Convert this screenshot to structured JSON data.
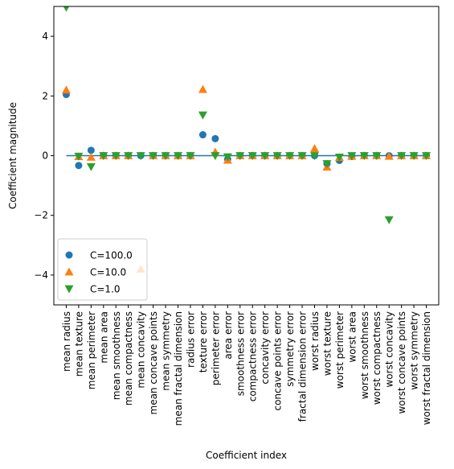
{
  "chart_data": {
    "type": "scatter",
    "xlabel": "Coefficient index",
    "ylabel": "Coefficient magnitude",
    "ylim": [
      -5,
      5
    ],
    "xlim": [
      -1,
      30
    ],
    "yticks": [
      -4,
      -2,
      0,
      2,
      4
    ],
    "grid": false,
    "legend_position": "lower-left",
    "categories": [
      "mean radius",
      "mean texture",
      "mean perimeter",
      "mean area",
      "mean smoothness",
      "mean compactness",
      "mean concavity",
      "mean concave points",
      "mean symmetry",
      "mean fractal dimension",
      "radius error",
      "texture error",
      "perimeter error",
      "area error",
      "smoothness error",
      "compactness error",
      "concavity error",
      "concave points error",
      "symmetry error",
      "fractal dimension error",
      "worst radius",
      "worst texture",
      "worst perimeter",
      "worst area",
      "worst smoothness",
      "worst compactness",
      "worst concavity",
      "worst concave points",
      "worst symmetry",
      "worst fractal dimension"
    ],
    "series": [
      {
        "name": "C=100.0",
        "marker": "circle",
        "color": "#1f77b4",
        "values": [
          2.05,
          -0.33,
          0.18,
          0.0,
          0.0,
          0.0,
          0.0,
          0.0,
          0.0,
          0.0,
          0.0,
          0.7,
          0.57,
          -0.12,
          0.0,
          0.0,
          0.0,
          0.0,
          0.0,
          0.0,
          0.0,
          -0.27,
          -0.16,
          -0.03,
          0.0,
          0.0,
          0.0,
          0.0,
          0.0,
          0.0
        ]
      },
      {
        "name": "C=10.0",
        "marker": "triangle-up",
        "color": "#ff7f0e",
        "values": [
          2.2,
          -0.03,
          -0.05,
          0.0,
          0.0,
          0.0,
          -3.8,
          0.0,
          0.0,
          0.0,
          0.0,
          2.22,
          0.12,
          -0.15,
          0.0,
          0.0,
          0.0,
          0.0,
          0.0,
          0.0,
          0.24,
          -0.38,
          -0.06,
          -0.02,
          0.0,
          0.0,
          -0.02,
          0.0,
          0.0,
          0.0
        ]
      },
      {
        "name": "C=1.0",
        "marker": "triangle-down",
        "color": "#2ca02c",
        "values": [
          4.97,
          -0.02,
          -0.37,
          0.0,
          0.0,
          0.0,
          0.0,
          0.0,
          0.0,
          0.0,
          0.0,
          1.36,
          0.0,
          -0.04,
          0.0,
          0.0,
          0.0,
          0.0,
          0.0,
          0.0,
          0.0,
          -0.27,
          -0.05,
          0.0,
          0.0,
          0.0,
          -2.15,
          0.0,
          0.0,
          0.0
        ]
      }
    ],
    "hline": {
      "y": 0,
      "x_from": 0,
      "x_to": 29,
      "color": "#1f77b4"
    }
  }
}
